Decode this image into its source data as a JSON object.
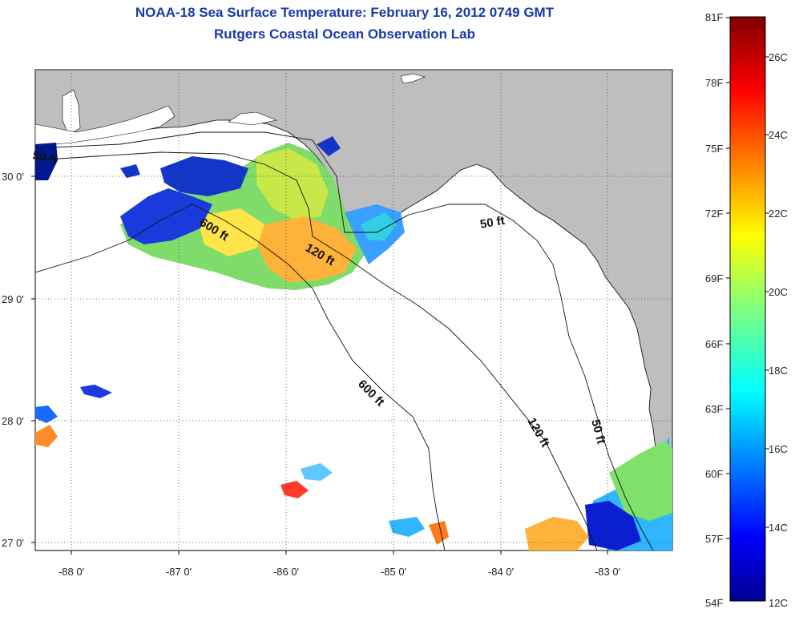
{
  "title": "NOAA-18 Sea Surface Temperature:  February 16, 2012 0749 GMT",
  "subtitle": "Rutgers Coastal Ocean Observation Lab",
  "map": {
    "lon_ticks": [
      "-88 0'",
      "-87 0'",
      "-86 0'",
      "-85 0'",
      "-84 0'",
      "-83 0'"
    ],
    "lat_ticks": [
      "30 0'",
      "29 0'",
      "28 0'",
      "27 0'"
    ],
    "contour_labels": [
      "600 ft",
      "120 ft",
      "50 ft",
      "600 ft",
      "120 ft",
      "50 ft",
      "50 ft"
    ],
    "land_color": "#bebebe",
    "grid": "dotted"
  },
  "colorbar": {
    "fahrenheit": [
      "81F",
      "78F",
      "75F",
      "72F",
      "69F",
      "66F",
      "63F",
      "60F",
      "57F",
      "54F"
    ],
    "celsius": [
      "26C",
      "24C",
      "22C",
      "20C",
      "18C",
      "16C",
      "14C",
      "12C"
    ],
    "colormap": "jet",
    "min_f": 54,
    "max_f": 81
  }
}
